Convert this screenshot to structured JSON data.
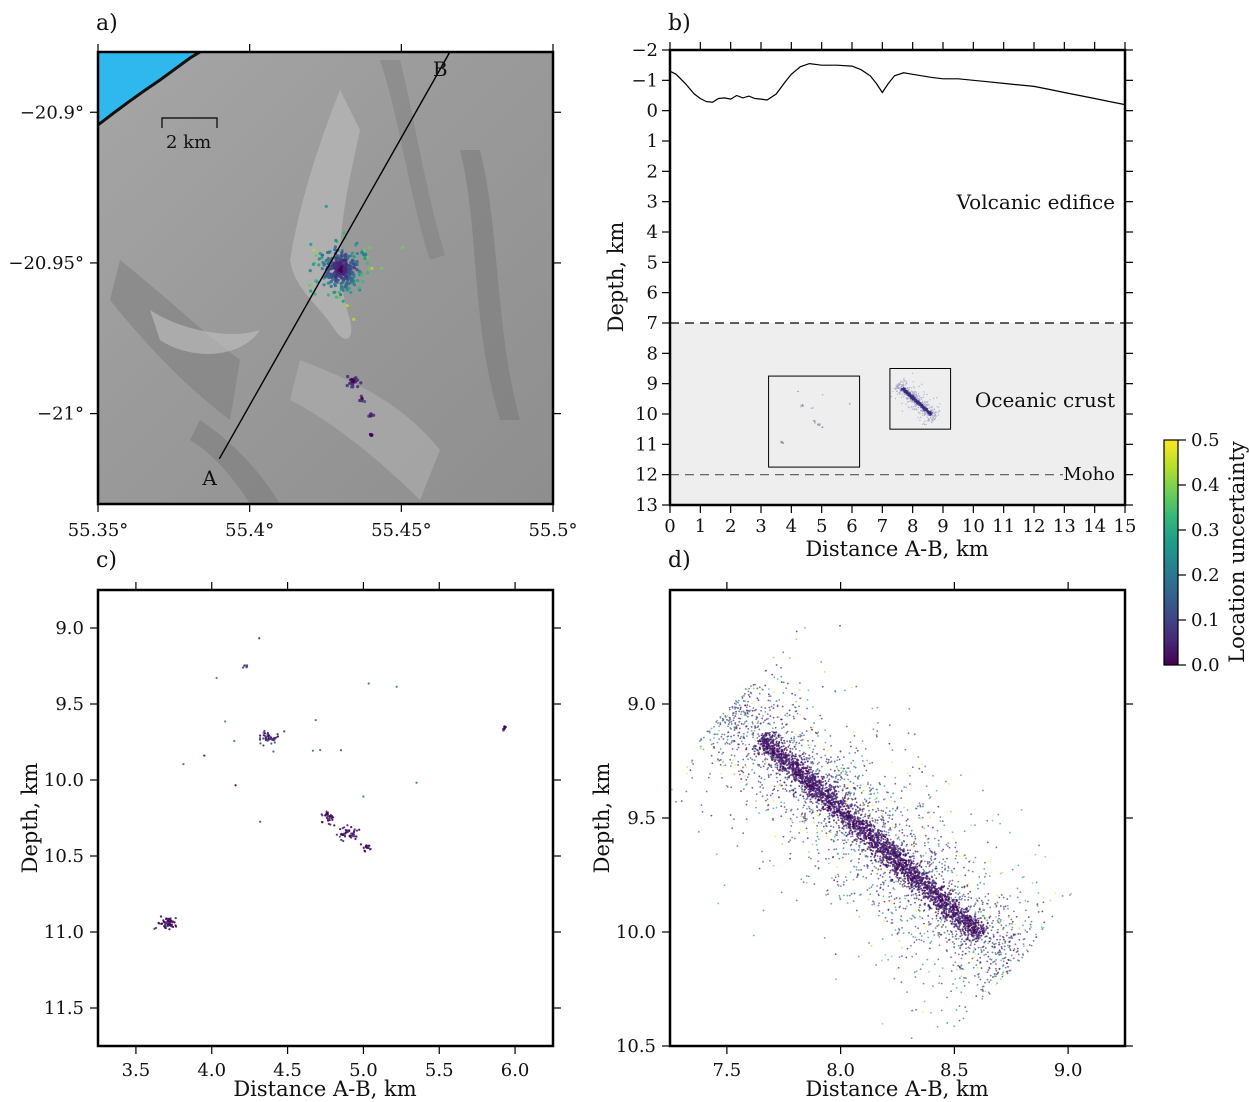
{
  "chart_data": [
    {
      "panel": "a)",
      "type": "scatter",
      "xticks": [
        "55.35°",
        "55.4°",
        "55.45°",
        "55.5°"
      ],
      "xtick_values": [
        55.35,
        55.4,
        55.45,
        55.5
      ],
      "yticks": [
        "−20.9°",
        "−20.95°",
        "−21°"
      ],
      "ytick_values": [
        -20.9,
        -20.95,
        -21.0
      ],
      "xlim": [
        55.35,
        55.5
      ],
      "ylim": [
        -21.03,
        -20.88
      ],
      "scale_bar_label": "2 km",
      "profile_labels": [
        "A",
        "B"
      ],
      "profile_line": [
        [
          55.39,
          -21.015
        ],
        [
          55.466,
          -20.88
        ]
      ],
      "clusters": [
        {
          "lon": 55.43,
          "lat": -20.952,
          "spread": 0.005,
          "count": 420,
          "min_u": 0.0,
          "max_u": 0.5
        },
        {
          "lon": 55.434,
          "lat": -20.989,
          "spread": 0.0012,
          "count": 25,
          "min_u": 0.0,
          "max_u": 0.12
        },
        {
          "lon": 55.437,
          "lat": -20.995,
          "spread": 0.0008,
          "count": 6,
          "min_u": 0.0,
          "max_u": 0.15
        },
        {
          "lon": 55.44,
          "lat": -21.001,
          "spread": 0.0006,
          "count": 5,
          "min_u": 0.0,
          "max_u": 0.1
        },
        {
          "lon": 55.44,
          "lat": -21.007,
          "spread": 0.0006,
          "count": 6,
          "min_u": 0.0,
          "max_u": 0.08
        }
      ]
    },
    {
      "panel": "b)",
      "type": "line",
      "xlabel": "Distance A-B, km",
      "ylabel": "Depth, km",
      "xlim": [
        0,
        15
      ],
      "ylim": [
        -2,
        13
      ],
      "xticks": [
        "0",
        "1",
        "2",
        "3",
        "4",
        "5",
        "6",
        "7",
        "8",
        "9",
        "10",
        "11",
        "12",
        "13",
        "14",
        "15"
      ],
      "xtick_values": [
        0,
        1,
        2,
        3,
        4,
        5,
        6,
        7,
        8,
        9,
        10,
        11,
        12,
        13,
        14,
        15
      ],
      "yticks": [
        "−2",
        "−1",
        "0",
        "1",
        "2",
        "3",
        "4",
        "5",
        "6",
        "7",
        "8",
        "9",
        "10",
        "11",
        "12",
        "13"
      ],
      "ytick_values": [
        -2,
        -1,
        0,
        1,
        2,
        3,
        4,
        5,
        6,
        7,
        8,
        9,
        10,
        11,
        12,
        13
      ],
      "topography": {
        "x": [
          0,
          0.2,
          0.5,
          0.8,
          1.0,
          1.2,
          1.4,
          1.6,
          1.8,
          2.0,
          2.2,
          2.4,
          2.6,
          2.8,
          3.0,
          3.2,
          3.5,
          3.8,
          4.0,
          4.3,
          4.6,
          5.0,
          5.5,
          6.0,
          6.3,
          6.6,
          6.8,
          7.0,
          7.2,
          7.4,
          7.7,
          8.0,
          8.3,
          8.6,
          9.0,
          9.5,
          10.0,
          10.5,
          11.0,
          11.5,
          12.0,
          12.5,
          13.0,
          13.5,
          14.0,
          14.5,
          15.0
        ],
        "depth": [
          -1.3,
          -1.2,
          -0.9,
          -0.55,
          -0.4,
          -0.3,
          -0.28,
          -0.4,
          -0.42,
          -0.38,
          -0.5,
          -0.42,
          -0.48,
          -0.4,
          -0.38,
          -0.35,
          -0.55,
          -0.95,
          -1.2,
          -1.45,
          -1.55,
          -1.5,
          -1.5,
          -1.47,
          -1.35,
          -1.15,
          -0.9,
          -0.6,
          -0.9,
          -1.15,
          -1.25,
          -1.2,
          -1.15,
          -1.1,
          -1.05,
          -1.05,
          -1.0,
          -0.95,
          -0.9,
          -0.85,
          -0.8,
          -0.7,
          -0.6,
          -0.5,
          -0.4,
          -0.3,
          -0.2
        ]
      },
      "layers": [
        {
          "label": "Volcanic edifice",
          "from": -2,
          "to": 7
        },
        {
          "label": "Oceanic crust",
          "from": 7,
          "to": 12
        },
        {
          "label": "Moho",
          "depth": 12
        }
      ],
      "crust_top": 7,
      "moho_depth": 12,
      "insets": [
        {
          "x": [
            3.25,
            6.25
          ],
          "y": [
            8.75,
            11.75
          ]
        },
        {
          "x": [
            7.25,
            9.25
          ],
          "y": [
            8.5,
            10.5
          ]
        }
      ]
    },
    {
      "panel": "c)",
      "type": "scatter",
      "xlabel": "Distance A-B, km",
      "ylabel": "Depth, km",
      "xlim": [
        3.25,
        6.25
      ],
      "ylim": [
        8.75,
        11.75
      ],
      "xticks": [
        "3.5",
        "4.0",
        "4.5",
        "5.0",
        "5.5",
        "6.0"
      ],
      "xtick_values": [
        3.5,
        4.0,
        4.5,
        5.0,
        5.5,
        6.0
      ],
      "yticks": [
        "9.0",
        "9.5",
        "10.0",
        "10.5",
        "11.0",
        "11.5"
      ],
      "ytick_values": [
        9.0,
        9.5,
        10.0,
        10.5,
        11.0,
        11.5
      ],
      "clusters": [
        {
          "x": 3.7,
          "y": 10.94,
          "sx": 0.035,
          "sy": 0.02,
          "count": 60,
          "max_u": 0.05
        },
        {
          "x": 4.38,
          "y": 9.73,
          "sx": 0.025,
          "sy": 0.02,
          "count": 45,
          "max_u": 0.12
        },
        {
          "x": 4.22,
          "y": 9.25,
          "sx": 0.01,
          "sy": 0.01,
          "count": 8,
          "max_u": 0.15
        },
        {
          "x": 4.77,
          "y": 10.25,
          "sx": 0.02,
          "sy": 0.02,
          "count": 30,
          "max_u": 0.06
        },
        {
          "x": 4.9,
          "y": 10.35,
          "sx": 0.03,
          "sy": 0.025,
          "count": 45,
          "max_u": 0.06
        },
        {
          "x": 5.02,
          "y": 10.44,
          "sx": 0.015,
          "sy": 0.015,
          "count": 18,
          "max_u": 0.06
        },
        {
          "x": 5.93,
          "y": 9.65,
          "sx": 0.006,
          "sy": 0.01,
          "count": 10,
          "max_u": 0.05
        },
        {
          "x": 4.6,
          "y": 9.9,
          "sx": 0.4,
          "sy": 0.4,
          "count": 20,
          "max_u": 0.25
        }
      ]
    },
    {
      "panel": "d)",
      "type": "scatter",
      "xlabel": "Distance A-B, km",
      "ylabel": "Depth, km",
      "xlim": [
        7.25,
        9.25
      ],
      "ylim": [
        8.5,
        10.5
      ],
      "xticks": [
        "7.5",
        "8.0",
        "8.5",
        "9.0"
      ],
      "xtick_values": [
        7.5,
        8.0,
        8.5,
        9.0
      ],
      "yticks": [
        "9.0",
        "9.5",
        "10.0",
        "10.5"
      ],
      "ytick_values": [
        9.0,
        9.5,
        10.0,
        10.5
      ],
      "trend": {
        "x0": 7.65,
        "y0": 9.15,
        "x1": 8.62,
        "y1": 10.02
      },
      "clusters": [
        {
          "along": "trend",
          "width": 0.025,
          "count": 2600,
          "max_u": 0.08
        },
        {
          "along": "trend",
          "width": 0.09,
          "count": 1600,
          "max_u": 0.2
        },
        {
          "along": "trend",
          "width": 0.2,
          "count": 1200,
          "max_u": 0.45
        }
      ]
    },
    {
      "type": "colorbar",
      "label": "Location uncertainty",
      "ticks": [
        "0.0",
        "0.1",
        "0.2",
        "0.3",
        "0.4",
        "0.5"
      ],
      "tick_values": [
        0.0,
        0.1,
        0.2,
        0.3,
        0.4,
        0.5
      ],
      "range": [
        0.0,
        0.5
      ],
      "colormap": "viridis"
    }
  ],
  "colors": {
    "viridis": [
      "#440154",
      "#482878",
      "#3e4989",
      "#31688e",
      "#26828e",
      "#1f9e89",
      "#35b779",
      "#6ece58",
      "#b5de2b",
      "#fde725"
    ],
    "sea": "#2fb8ee",
    "crust_fill": "#eeeeee",
    "relief": "#9a9a9a"
  }
}
